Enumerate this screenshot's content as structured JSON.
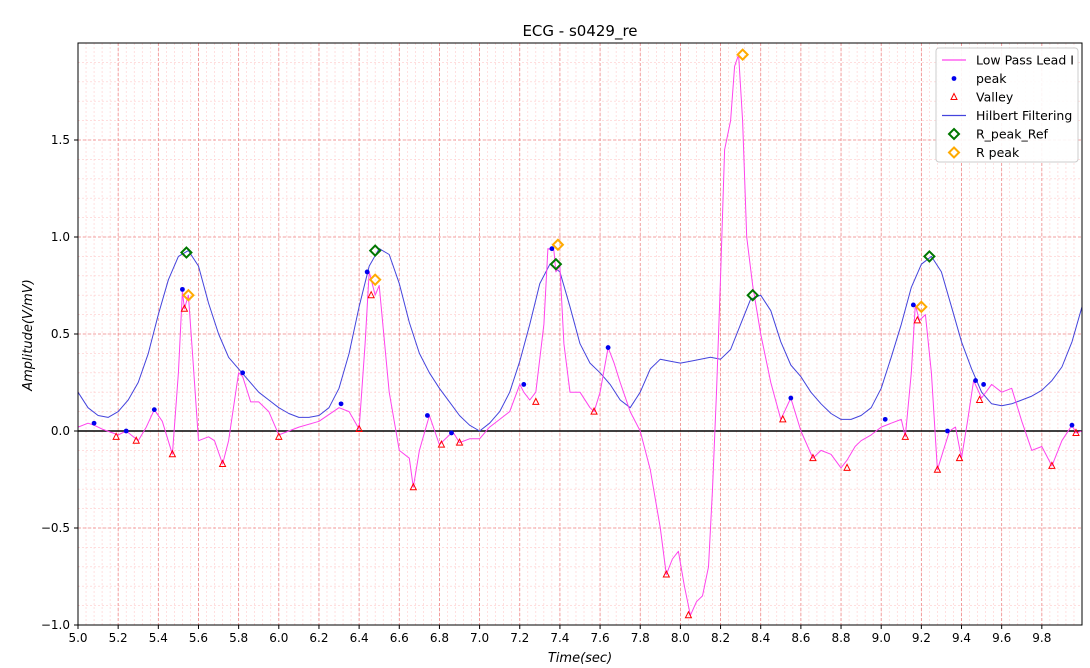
{
  "chart_data": {
    "type": "line",
    "title": "ECG - s0429_re",
    "xlabel": "Time(sec)",
    "ylabel": "Amplitude(V/mV)",
    "xlim": [
      5.0,
      10.0
    ],
    "ylim": [
      -1.0,
      2.0
    ],
    "x_ticks": [
      5.0,
      5.2,
      5.4,
      5.6,
      5.8,
      6.0,
      6.2,
      6.4,
      6.6,
      6.8,
      7.0,
      7.2,
      7.4,
      7.6,
      7.8,
      8.0,
      8.2,
      8.4,
      8.6,
      8.8,
      9.0,
      9.2,
      9.4,
      9.6,
      9.8
    ],
    "x_tick_labels": [
      "5.0",
      "5.2",
      "5.4",
      "5.6",
      "5.8",
      "6.0",
      "6.2",
      "6.4",
      "6.6",
      "6.8",
      "7.0",
      "7.2",
      "7.4",
      "7.6",
      "7.8",
      "8.0",
      "8.2",
      "8.4",
      "8.6",
      "8.8",
      "9.0",
      "9.2",
      "9.4",
      "9.6",
      "9.8"
    ],
    "y_ticks": [
      -1.0,
      -0.5,
      0.0,
      0.5,
      1.0,
      1.5
    ],
    "y_tick_labels": [
      "−1.0",
      "−0.5",
      "0.0",
      "0.5",
      "1.0",
      "1.5"
    ],
    "grid": true,
    "legend_position": "top-right",
    "colors": {
      "lowpass": "#ff44ee",
      "peak": "#0000ee",
      "valley": "#ff0000",
      "hilbert": "#4444dd",
      "r_peak_ref": "#007700",
      "r_peak": "#ffaa00",
      "zero_line": "#000000"
    },
    "series": [
      {
        "name": "Low Pass Lead I",
        "kind": "line",
        "x": [
          5.0,
          5.05,
          5.08,
          5.12,
          5.2,
          5.24,
          5.3,
          5.34,
          5.38,
          5.42,
          5.47,
          5.5,
          5.52,
          5.53,
          5.55,
          5.57,
          5.6,
          5.65,
          5.68,
          5.72,
          5.75,
          5.8,
          5.82,
          5.86,
          5.9,
          5.95,
          6.0,
          6.1,
          6.2,
          6.3,
          6.35,
          6.4,
          6.43,
          6.45,
          6.48,
          6.5,
          6.55,
          6.6,
          6.65,
          6.67,
          6.7,
          6.75,
          6.8,
          6.85,
          6.87,
          6.9,
          6.95,
          7.0,
          7.05,
          7.1,
          7.15,
          7.2,
          7.22,
          7.25,
          7.28,
          7.32,
          7.34,
          7.37,
          7.38,
          7.4,
          7.42,
          7.45,
          7.5,
          7.55,
          7.57,
          7.6,
          7.64,
          7.67,
          7.7,
          7.75,
          7.8,
          7.85,
          7.9,
          7.93,
          7.96,
          7.99,
          8.02,
          8.05,
          8.08,
          8.11,
          8.14,
          8.16,
          8.18,
          8.2,
          8.22,
          8.25,
          8.27,
          8.29,
          8.31,
          8.33,
          8.36,
          8.4,
          8.45,
          8.5,
          8.55,
          8.6,
          8.66,
          8.7,
          8.75,
          8.8,
          8.83,
          8.87,
          8.9,
          8.95,
          9.0,
          9.05,
          9.1,
          9.12,
          9.15,
          9.17,
          9.19,
          9.22,
          9.25,
          9.28,
          9.31,
          9.34,
          9.37,
          9.4,
          9.43,
          9.46,
          9.5,
          9.55,
          9.6,
          9.65,
          9.7,
          9.75,
          9.8,
          9.85,
          9.9,
          9.95,
          9.97,
          10.0
        ],
        "y": [
          0.02,
          0.04,
          0.03,
          0.01,
          -0.02,
          0.0,
          -0.05,
          0.02,
          0.11,
          0.05,
          -0.12,
          0.3,
          0.72,
          0.63,
          0.7,
          0.4,
          -0.05,
          -0.03,
          -0.05,
          -0.17,
          -0.05,
          0.3,
          0.28,
          0.15,
          0.15,
          0.1,
          -0.02,
          0.02,
          0.05,
          0.12,
          0.1,
          0.01,
          0.45,
          0.82,
          0.7,
          0.75,
          0.2,
          -0.1,
          -0.14,
          -0.29,
          -0.1,
          0.08,
          -0.07,
          -0.02,
          -0.01,
          -0.06,
          -0.04,
          -0.04,
          0.02,
          0.06,
          0.1,
          0.24,
          0.2,
          0.16,
          0.2,
          0.55,
          0.94,
          0.93,
          0.82,
          0.85,
          0.45,
          0.2,
          0.2,
          0.12,
          0.1,
          0.2,
          0.43,
          0.35,
          0.25,
          0.1,
          0.0,
          -0.2,
          -0.5,
          -0.74,
          -0.66,
          -0.62,
          -0.8,
          -0.95,
          -0.88,
          -0.85,
          -0.7,
          -0.3,
          0.2,
          0.8,
          1.45,
          1.6,
          1.88,
          1.94,
          1.6,
          1.0,
          0.75,
          0.5,
          0.25,
          0.06,
          0.17,
          0.0,
          -0.14,
          -0.1,
          -0.12,
          -0.19,
          -0.15,
          -0.08,
          -0.05,
          -0.02,
          0.02,
          0.04,
          0.06,
          -0.03,
          0.3,
          0.65,
          0.57,
          0.6,
          0.3,
          -0.2,
          -0.1,
          0.0,
          0.02,
          -0.14,
          0.05,
          0.26,
          0.17,
          0.24,
          0.2,
          0.22,
          0.05,
          -0.1,
          -0.08,
          -0.18,
          -0.05,
          0.03,
          -0.01,
          0.0
        ]
      },
      {
        "name": "peak",
        "kind": "points",
        "x": [
          5.08,
          5.24,
          5.38,
          5.52,
          5.82,
          6.31,
          6.44,
          6.74,
          6.86,
          7.22,
          7.36,
          7.64,
          8.55,
          9.02,
          9.16,
          9.33,
          9.47,
          9.51,
          9.95
        ],
        "y": [
          0.04,
          0.0,
          0.11,
          0.73,
          0.3,
          0.14,
          0.82,
          0.08,
          -0.01,
          0.24,
          0.94,
          0.43,
          0.17,
          0.06,
          0.65,
          0.0,
          0.26,
          0.24,
          0.03
        ]
      },
      {
        "name": "Valley",
        "kind": "points",
        "x": [
          5.19,
          5.29,
          5.47,
          5.53,
          5.72,
          6.0,
          6.4,
          6.46,
          6.67,
          6.81,
          6.9,
          7.28,
          7.57,
          7.93,
          8.04,
          8.51,
          8.66,
          8.83,
          9.12,
          9.18,
          9.28,
          9.39,
          9.49,
          9.85,
          9.97
        ],
        "y": [
          -0.03,
          -0.05,
          -0.12,
          0.63,
          -0.17,
          -0.03,
          0.01,
          0.7,
          -0.29,
          -0.07,
          -0.06,
          0.15,
          0.1,
          -0.74,
          -0.95,
          0.06,
          -0.14,
          -0.19,
          -0.03,
          0.57,
          -0.2,
          -0.14,
          0.16,
          -0.18,
          -0.01
        ]
      },
      {
        "name": "Hilbert Filtering",
        "kind": "line",
        "x": [
          5.0,
          5.05,
          5.1,
          5.15,
          5.2,
          5.25,
          5.3,
          5.35,
          5.4,
          5.45,
          5.5,
          5.55,
          5.6,
          5.65,
          5.7,
          5.75,
          5.8,
          5.85,
          5.9,
          5.95,
          6.0,
          6.05,
          6.1,
          6.15,
          6.2,
          6.25,
          6.3,
          6.35,
          6.4,
          6.45,
          6.5,
          6.55,
          6.6,
          6.65,
          6.7,
          6.75,
          6.8,
          6.85,
          6.9,
          6.95,
          7.0,
          7.05,
          7.1,
          7.15,
          7.2,
          7.25,
          7.3,
          7.35,
          7.4,
          7.45,
          7.5,
          7.55,
          7.6,
          7.65,
          7.7,
          7.75,
          7.8,
          7.85,
          7.9,
          7.95,
          8.0,
          8.05,
          8.1,
          8.15,
          8.2,
          8.25,
          8.3,
          8.35,
          8.4,
          8.45,
          8.5,
          8.55,
          8.6,
          8.65,
          8.7,
          8.75,
          8.8,
          8.85,
          8.9,
          8.95,
          9.0,
          9.05,
          9.1,
          9.15,
          9.2,
          9.25,
          9.3,
          9.35,
          9.4,
          9.45,
          9.5,
          9.55,
          9.6,
          9.65,
          9.7,
          9.75,
          9.8,
          9.85,
          9.9,
          9.95,
          10.0
        ],
        "y": [
          0.2,
          0.12,
          0.08,
          0.07,
          0.1,
          0.16,
          0.25,
          0.4,
          0.6,
          0.78,
          0.9,
          0.93,
          0.85,
          0.66,
          0.5,
          0.38,
          0.32,
          0.26,
          0.2,
          0.16,
          0.12,
          0.09,
          0.07,
          0.07,
          0.08,
          0.12,
          0.22,
          0.4,
          0.64,
          0.85,
          0.94,
          0.91,
          0.76,
          0.56,
          0.4,
          0.3,
          0.22,
          0.15,
          0.08,
          0.03,
          0.0,
          0.04,
          0.1,
          0.2,
          0.36,
          0.55,
          0.76,
          0.86,
          0.82,
          0.64,
          0.45,
          0.35,
          0.3,
          0.24,
          0.16,
          0.12,
          0.2,
          0.32,
          0.37,
          0.36,
          0.35,
          0.36,
          0.37,
          0.38,
          0.37,
          0.42,
          0.55,
          0.68,
          0.7,
          0.62,
          0.46,
          0.34,
          0.28,
          0.2,
          0.14,
          0.09,
          0.06,
          0.06,
          0.08,
          0.12,
          0.22,
          0.38,
          0.55,
          0.74,
          0.86,
          0.9,
          0.82,
          0.64,
          0.46,
          0.32,
          0.2,
          0.14,
          0.13,
          0.14,
          0.16,
          0.18,
          0.21,
          0.26,
          0.33,
          0.46,
          0.64
        ]
      },
      {
        "name": "R_peak_Ref",
        "kind": "diamonds",
        "x": [
          5.54,
          6.48,
          7.38,
          8.36,
          9.24
        ],
        "y": [
          0.92,
          0.93,
          0.86,
          0.7,
          0.9
        ]
      },
      {
        "name": "R peak",
        "kind": "diamonds",
        "x": [
          5.55,
          6.48,
          7.39,
          8.31,
          9.2
        ],
        "y": [
          0.7,
          0.78,
          0.96,
          1.94,
          0.64
        ]
      }
    ]
  }
}
